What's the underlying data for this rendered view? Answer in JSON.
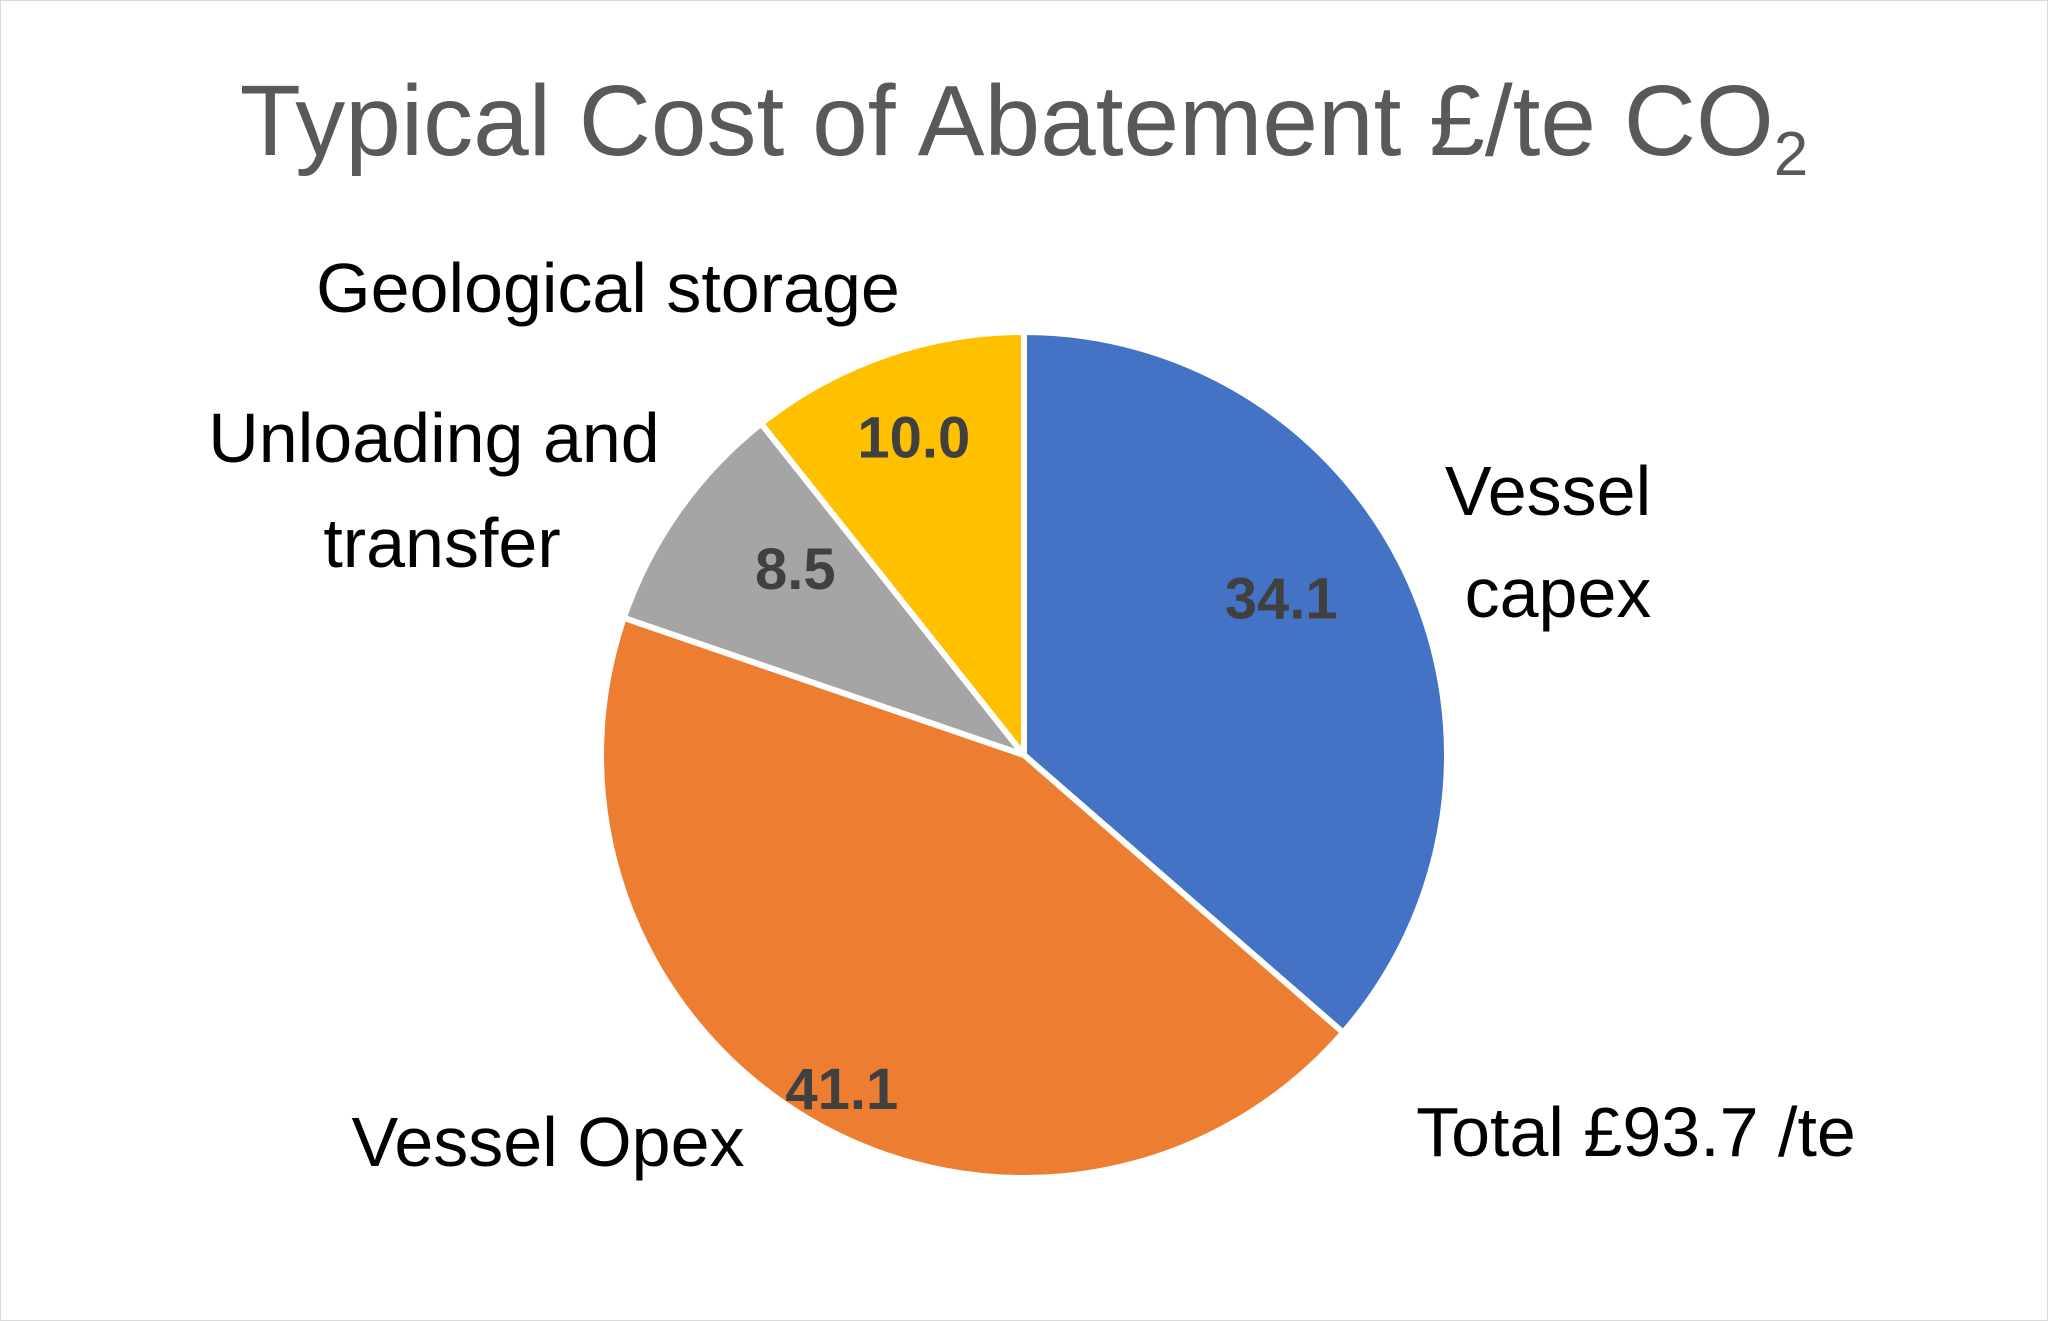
{
  "chart_data": {
    "type": "pie",
    "title": "Typical Cost of Abatement £/te CO",
    "title_subscript": "2",
    "slices": [
      {
        "name": "Vessel capex",
        "value": 34.1,
        "label": "34.1",
        "color": "#4472C4"
      },
      {
        "name": "Vessel Opex",
        "value": 41.1,
        "label": "41.1",
        "color": "#ED7D31"
      },
      {
        "name": "Unloading and transfer",
        "value": 8.5,
        "label": "8.5",
        "color": "#A5A5A5"
      },
      {
        "name": "Geological storage",
        "value": 10.0,
        "label": "10.0",
        "color": "#FFC000"
      }
    ],
    "category_labels": {
      "vessel_capex": [
        "Vessel",
        "capex"
      ],
      "vessel_opex": [
        "Vessel Opex"
      ],
      "unloading": [
        "Unloading and",
        "transfer"
      ],
      "geological": [
        "Geological storage"
      ]
    },
    "annotation": "Total £93.7 /te",
    "legend": "none",
    "start_angle": "12 o'clock",
    "direction": "clockwise"
  }
}
